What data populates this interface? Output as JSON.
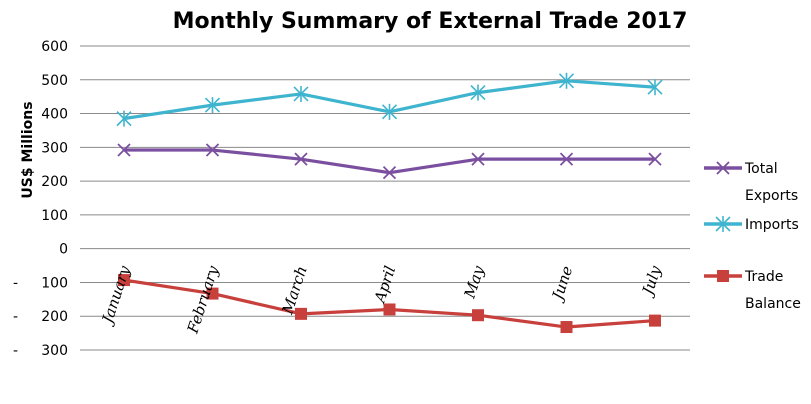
{
  "chart_data": {
    "type": "line",
    "title": "Monthly Summary of External Trade 2017",
    "ylabel": "US$ Millions",
    "xlabel": "",
    "ylim": [
      -300,
      600
    ],
    "y_ticks": [
      600,
      500,
      400,
      300,
      200,
      100,
      0,
      -100,
      -200,
      -300
    ],
    "y_tick_labels": [
      "600",
      "500",
      "400",
      "300",
      "200",
      "100",
      "0",
      "100",
      "200",
      "300"
    ],
    "negative_tick_prefix": "-",
    "grid": true,
    "legend_position": "right",
    "categories": [
      "January",
      "February",
      "March",
      "April",
      "May",
      "June",
      "July"
    ],
    "series": [
      {
        "name": "Total Exports",
        "legend_lines": [
          "Total",
          "Exports"
        ],
        "color": "#7B4FA0",
        "marker": "x",
        "values": [
          292,
          292,
          265,
          225,
          265,
          265,
          265
        ]
      },
      {
        "name": "Imports",
        "legend_lines": [
          "Imports"
        ],
        "color": "#3FB4CE",
        "marker": "star",
        "values": [
          385,
          425,
          458,
          405,
          462,
          497,
          478
        ]
      },
      {
        "name": "Trade Balance",
        "legend_lines": [
          "Trade",
          "Balance"
        ],
        "color": "#C8403C",
        "marker": "square",
        "values": [
          -93,
          -133,
          -193,
          -180,
          -197,
          -232,
          -213
        ]
      }
    ]
  }
}
